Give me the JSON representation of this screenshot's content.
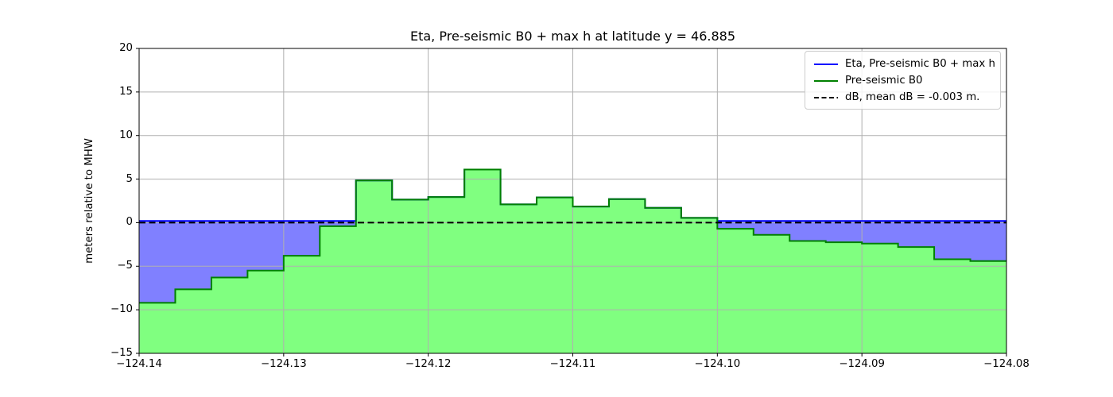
{
  "chart_data": {
    "type": "area",
    "title": "Eta, Pre-seismic B0 + max h at latitude y = 46.885",
    "xlabel": "",
    "ylabel": "meters relative to MHW",
    "xlim": [
      -124.14,
      -124.08
    ],
    "ylim": [
      -15,
      20
    ],
    "grid": true,
    "xticks": [
      -124.14,
      -124.13,
      -124.12,
      -124.11,
      -124.1,
      -124.09,
      -124.08
    ],
    "xtick_labels": [
      "−124.14",
      "−124.13",
      "−124.12",
      "−124.11",
      "−124.10",
      "−124.09",
      "−124.08"
    ],
    "yticks": [
      20,
      15,
      10,
      5,
      0,
      -5,
      -10,
      -15
    ],
    "ytick_labels": [
      "20",
      "15",
      "10",
      "5",
      "0",
      "−5",
      "−10",
      "−15"
    ],
    "legend": {
      "position": "upper right",
      "entries": [
        {
          "label": "Eta, Pre-seismic B0 + max h",
          "color": "#0000ff",
          "style": "solid"
        },
        {
          "label": "Pre-seismic B0",
          "color": "#008000",
          "style": "solid"
        },
        {
          "label": "dB, mean dB = -0.003 m.",
          "color": "#000000",
          "style": "dashed"
        }
      ]
    },
    "topography_steps": {
      "name": "Pre-seismic B0",
      "x_start": -124.14,
      "step_width": 0.0025,
      "values": [
        -9.2,
        -7.65,
        -6.3,
        -5.5,
        -3.8,
        -0.4,
        4.85,
        2.65,
        2.95,
        6.1,
        2.1,
        2.9,
        1.85,
        2.7,
        1.7,
        0.55,
        -0.7,
        -1.4,
        -2.1,
        -2.25,
        -2.4,
        -2.8,
        -4.2,
        -4.4
      ],
      "line_color": "#008000",
      "fill_color": "#80ff80"
    },
    "eta": {
      "name": "Eta, Pre-seismic B0 + max h",
      "level": 0.2,
      "line_color": "#0000ff",
      "fill_color": "#8080ff"
    },
    "db_line": {
      "name": "dB",
      "level": 0,
      "color": "#000000",
      "style": "dashed"
    },
    "colors": {
      "grid": "#b0b0b0",
      "axis": "#000000",
      "background": "#ffffff"
    }
  }
}
